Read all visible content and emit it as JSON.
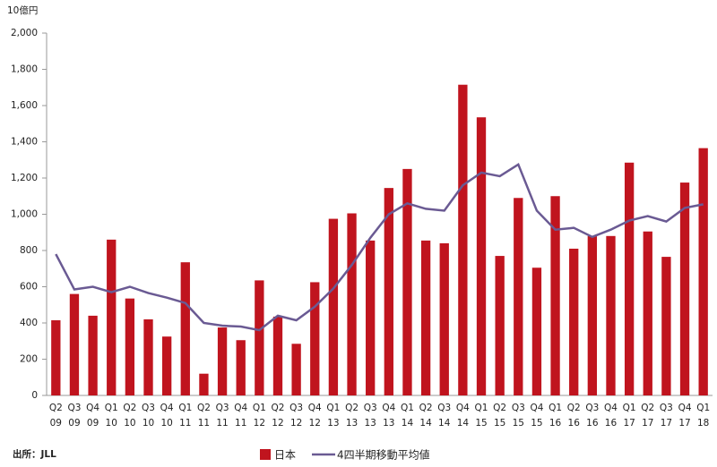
{
  "chart_data": {
    "type": "bar_line",
    "y_axis_label": "10億円",
    "source": "出所：JLL",
    "categories": [
      [
        "Q2",
        "09"
      ],
      [
        "Q3",
        "09"
      ],
      [
        "Q4",
        "09"
      ],
      [
        "Q1",
        "10"
      ],
      [
        "Q2",
        "10"
      ],
      [
        "Q3",
        "10"
      ],
      [
        "Q4",
        "10"
      ],
      [
        "Q1",
        "11"
      ],
      [
        "Q2",
        "11"
      ],
      [
        "Q3",
        "11"
      ],
      [
        "Q4",
        "11"
      ],
      [
        "Q1",
        "12"
      ],
      [
        "Q2",
        "12"
      ],
      [
        "Q3",
        "12"
      ],
      [
        "Q4",
        "12"
      ],
      [
        "Q1",
        "13"
      ],
      [
        "Q2",
        "13"
      ],
      [
        "Q3",
        "13"
      ],
      [
        "Q4",
        "13"
      ],
      [
        "Q1",
        "14"
      ],
      [
        "Q2",
        "14"
      ],
      [
        "Q3",
        "14"
      ],
      [
        "Q4",
        "14"
      ],
      [
        "Q1",
        "15"
      ],
      [
        "Q2",
        "15"
      ],
      [
        "Q3",
        "15"
      ],
      [
        "Q4",
        "15"
      ],
      [
        "Q1",
        "16"
      ],
      [
        "Q2",
        "16"
      ],
      [
        "Q3",
        "16"
      ],
      [
        "Q4",
        "16"
      ],
      [
        "Q1",
        "17"
      ],
      [
        "Q2",
        "17"
      ],
      [
        "Q3",
        "17"
      ],
      [
        "Q4",
        "17"
      ],
      [
        "Q1",
        "18"
      ]
    ],
    "series": [
      {
        "name": "日本",
        "type": "bar",
        "color": "#c0141e",
        "values": [
          415,
          560,
          440,
          860,
          535,
          420,
          325,
          735,
          120,
          375,
          305,
          635,
          435,
          285,
          625,
          975,
          1005,
          855,
          1145,
          1250,
          855,
          840,
          1715,
          1535,
          770,
          1090,
          705,
          1100,
          810,
          880,
          880,
          1285,
          905,
          765,
          1175,
          1365
        ]
      },
      {
        "name": "4四半期移動平均値",
        "type": "line",
        "color": "#6a5a93",
        "values": [
          780,
          585,
          600,
          570,
          600,
          565,
          540,
          510,
          400,
          385,
          380,
          360,
          440,
          415,
          490,
          590,
          720,
          870,
          1000,
          1060,
          1030,
          1020,
          1160,
          1230,
          1210,
          1275,
          1020,
          915,
          925,
          875,
          915,
          965,
          990,
          960,
          1035,
          1055
        ]
      }
    ],
    "ylim": [
      0,
      2000
    ],
    "yticks": [
      0,
      {
        "value": 200,
        "label": "200"
      },
      400,
      600,
      800,
      {
        "value": 1000,
        "label": "1,000"
      },
      {
        "value": 1200,
        "label": "1,200"
      },
      {
        "value": 1400,
        "label": "1,400"
      },
      {
        "value": 1600,
        "label": "1,600"
      },
      {
        "value": 1800,
        "label": "1,800"
      },
      {
        "value": 2000,
        "label": "2,000"
      }
    ],
    "grid": false
  }
}
